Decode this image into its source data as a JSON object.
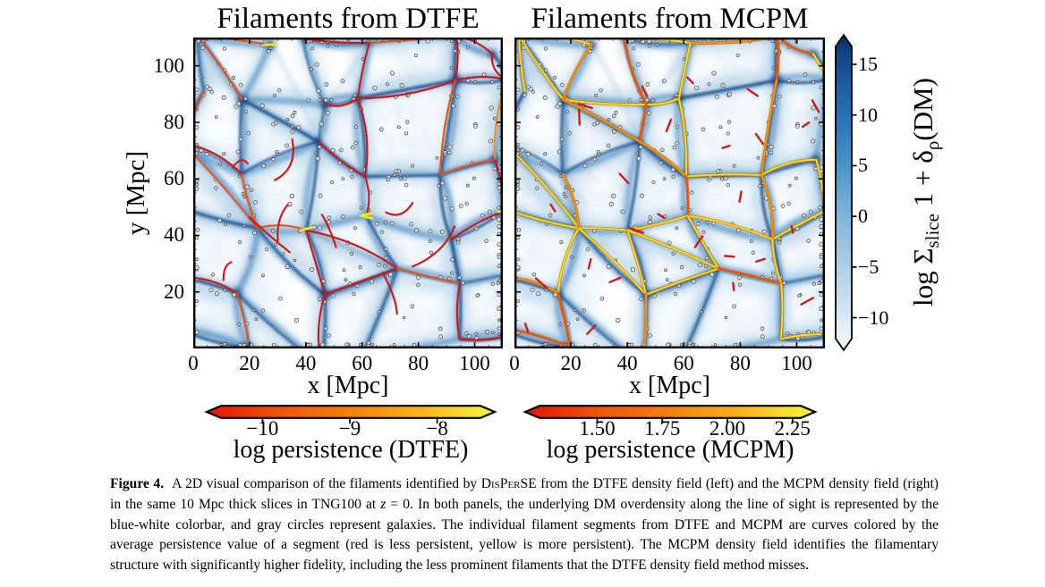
{
  "figure": {
    "ylabel": "y [Mpc]",
    "panels": [
      {
        "id": "dtfe",
        "title": "Filaments from DTFE",
        "xlabel": "x [Mpc]"
      },
      {
        "id": "mcpm",
        "title": "Filaments from MCPM",
        "xlabel": "x [Mpc]"
      }
    ],
    "axis": {
      "xlim": [
        0,
        110
      ],
      "ylim": [
        0,
        110
      ],
      "xticks": [
        0,
        20,
        40,
        60,
        80,
        100
      ],
      "yticks": [
        20,
        40,
        60,
        80,
        100
      ],
      "major_step": 20,
      "minor_step": 5
    }
  },
  "colorbars": {
    "dm": {
      "orientation": "vertical",
      "label": {
        "p1": "log Σ",
        "sub1": "slice",
        "p2": " 1 + δ",
        "sub2": "ρ",
        "p3": "(DM)"
      },
      "ticks": [
        {
          "v": 15,
          "label": "15"
        },
        {
          "v": 10,
          "label": "10"
        },
        {
          "v": 5,
          "label": "5"
        },
        {
          "v": 0,
          "label": "0"
        },
        {
          "v": -5,
          "label": "−5"
        },
        {
          "v": -10,
          "label": "−10"
        }
      ],
      "vmin": -13.3,
      "vmax": 18,
      "colors": [
        "#08306b",
        "#1c5ba0",
        "#2f76b9",
        "#4f97c9",
        "#7fb4d9",
        "#a9cbe5",
        "#cfe1f0",
        "#f7fbff"
      ]
    },
    "dtfe": {
      "orientation": "horizontal",
      "label": "log persistence (DTFE)",
      "ticks": [
        {
          "v": -10,
          "label": "−10"
        },
        {
          "v": -9,
          "label": "−9"
        },
        {
          "v": -8,
          "label": "−8"
        }
      ],
      "vmin": -10.65,
      "vmax": -7.33,
      "colors": [
        "#e41408",
        "#ef5409",
        "#f5800b",
        "#f8b41c",
        "#f8f83c"
      ]
    },
    "mcpm": {
      "orientation": "horizontal",
      "label": "log persistence (MCPM)",
      "ticks": [
        {
          "v": 1.5,
          "label": "1.50"
        },
        {
          "v": 1.75,
          "label": "1.75"
        },
        {
          "v": 2.0,
          "label": "2.00"
        },
        {
          "v": 2.25,
          "label": "2.25"
        }
      ],
      "vmin": 1.22,
      "vmax": 2.34,
      "colors": [
        "#e41408",
        "#ef5409",
        "#f5800b",
        "#f8b41c",
        "#f8f83c"
      ]
    }
  },
  "art": {
    "palette": {
      "bg": "#fbfdff",
      "web_light": "#8fbcdb",
      "web_mid": "#4180ba",
      "web_dark": "#0d3f7d",
      "knot": "#123f78",
      "galaxy_fill": "#dcdcdc",
      "galaxy_stroke": "#3c3c3c",
      "red": "#d21414",
      "orangered": "#ee5210",
      "orange": "#f59311",
      "yellow": "#f2e41e",
      "under": "#d07000"
    }
  },
  "caption": {
    "label": "Figure 4.",
    "p1": "A 2D visual comparison of the filaments identified by ",
    "disperse": "DisPerSE",
    "p2": " from the DTFE density field (left) and the MCPM density field (right) in the same 10 Mpc thick slices in TNG100 at ",
    "zvar": "z",
    "p3": " = 0. In both panels, the underlying DM overdensity along the line of sight is represented by the blue-white colorbar, and gray circles represent galaxies. The individual filament segments from DTFE and MCPM are curves colored by the average persistence value of a segment (red is less persistent, yellow is more persistent). The MCPM density field identifies the filamentary structure with significantly higher fidelity, including the less prominent filaments that the DTFE density field method misses."
  },
  "chart_data": [
    {
      "type": "heatmap",
      "title": "Filaments from DTFE",
      "xlabel": "x [Mpc]",
      "ylabel": "y [Mpc]",
      "xlim": [
        0,
        110
      ],
      "ylim": [
        0,
        110
      ],
      "xticks": [
        0,
        20,
        40,
        60,
        80,
        100
      ],
      "yticks": [
        20,
        40,
        60,
        80,
        100
      ],
      "colorbar": {
        "label": "log Σ_slice 1 + δ_ρ(DM)",
        "ticks": [
          15,
          10,
          5,
          0,
          -5,
          -10
        ],
        "colormap": "white-to-dark-blue"
      },
      "overlay": {
        "label": "log persistence (DTFE)",
        "ticks": [
          -10,
          -9,
          -8
        ],
        "colormap": "red-to-yellow",
        "markers": "gray circles = galaxies"
      }
    },
    {
      "type": "heatmap",
      "title": "Filaments from MCPM",
      "xlabel": "x [Mpc]",
      "xlim": [
        0,
        110
      ],
      "ylim": [
        0,
        110
      ],
      "xticks": [
        0,
        20,
        40,
        60,
        80,
        100
      ],
      "colorbar": {
        "label": "log Σ_slice 1 + δ_ρ(DM)",
        "ticks": [
          15,
          10,
          5,
          0,
          -5,
          -10
        ],
        "colormap": "white-to-dark-blue"
      },
      "overlay": {
        "label": "log persistence (MCPM)",
        "ticks": [
          1.5,
          1.75,
          2.0,
          2.25
        ],
        "colormap": "red-to-yellow",
        "markers": "gray circles = galaxies"
      }
    }
  ]
}
